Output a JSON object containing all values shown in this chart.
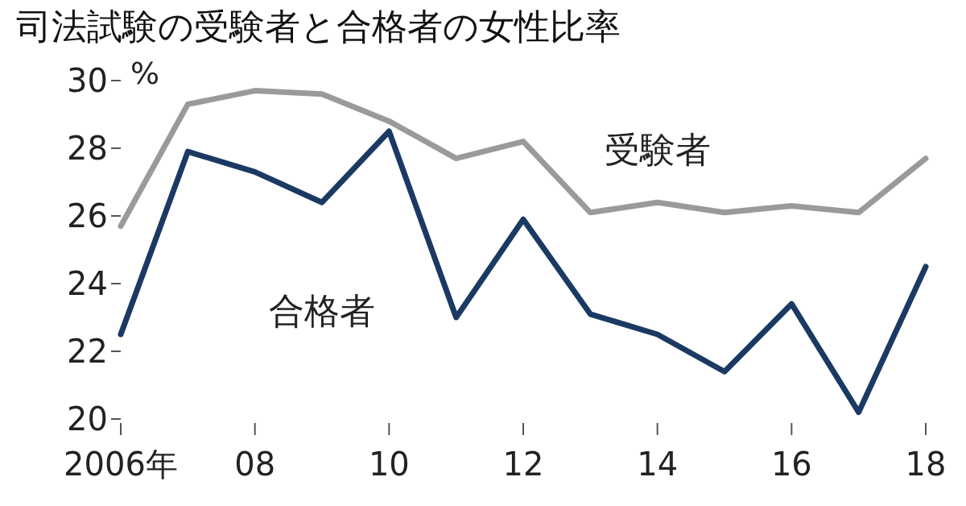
{
  "chart_data": {
    "type": "line",
    "title": "司法試験の受験者と合格者の女性比率",
    "x": [
      2006,
      2007,
      2008,
      2009,
      2010,
      2011,
      2012,
      2013,
      2014,
      2015,
      2016,
      2017,
      2018
    ],
    "series": [
      {
        "name": "受験者",
        "color": "#9a9a9a",
        "values": [
          25.7,
          29.3,
          29.7,
          29.6,
          28.8,
          27.7,
          28.2,
          26.1,
          26.4,
          26.1,
          26.3,
          26.1,
          27.7
        ]
      },
      {
        "name": "合格者",
        "color": "#1b3a63",
        "values": [
          22.5,
          27.9,
          27.3,
          26.4,
          28.5,
          23.0,
          25.9,
          23.1,
          22.5,
          21.4,
          23.4,
          20.2,
          24.5
        ]
      }
    ],
    "xlim": [
      2006,
      2018
    ],
    "ylim": [
      20,
      30
    ],
    "xticks": [
      {
        "value": 2006,
        "label": "2006年"
      },
      {
        "value": 2008,
        "label": "08"
      },
      {
        "value": 2010,
        "label": "10"
      },
      {
        "value": 2012,
        "label": "12"
      },
      {
        "value": 2014,
        "label": "14"
      },
      {
        "value": 2016,
        "label": "16"
      },
      {
        "value": 2018,
        "label": "18"
      }
    ],
    "yticks": [
      20,
      22,
      24,
      26,
      28,
      30
    ],
    "annotations": [
      "%"
    ],
    "grid": false
  }
}
